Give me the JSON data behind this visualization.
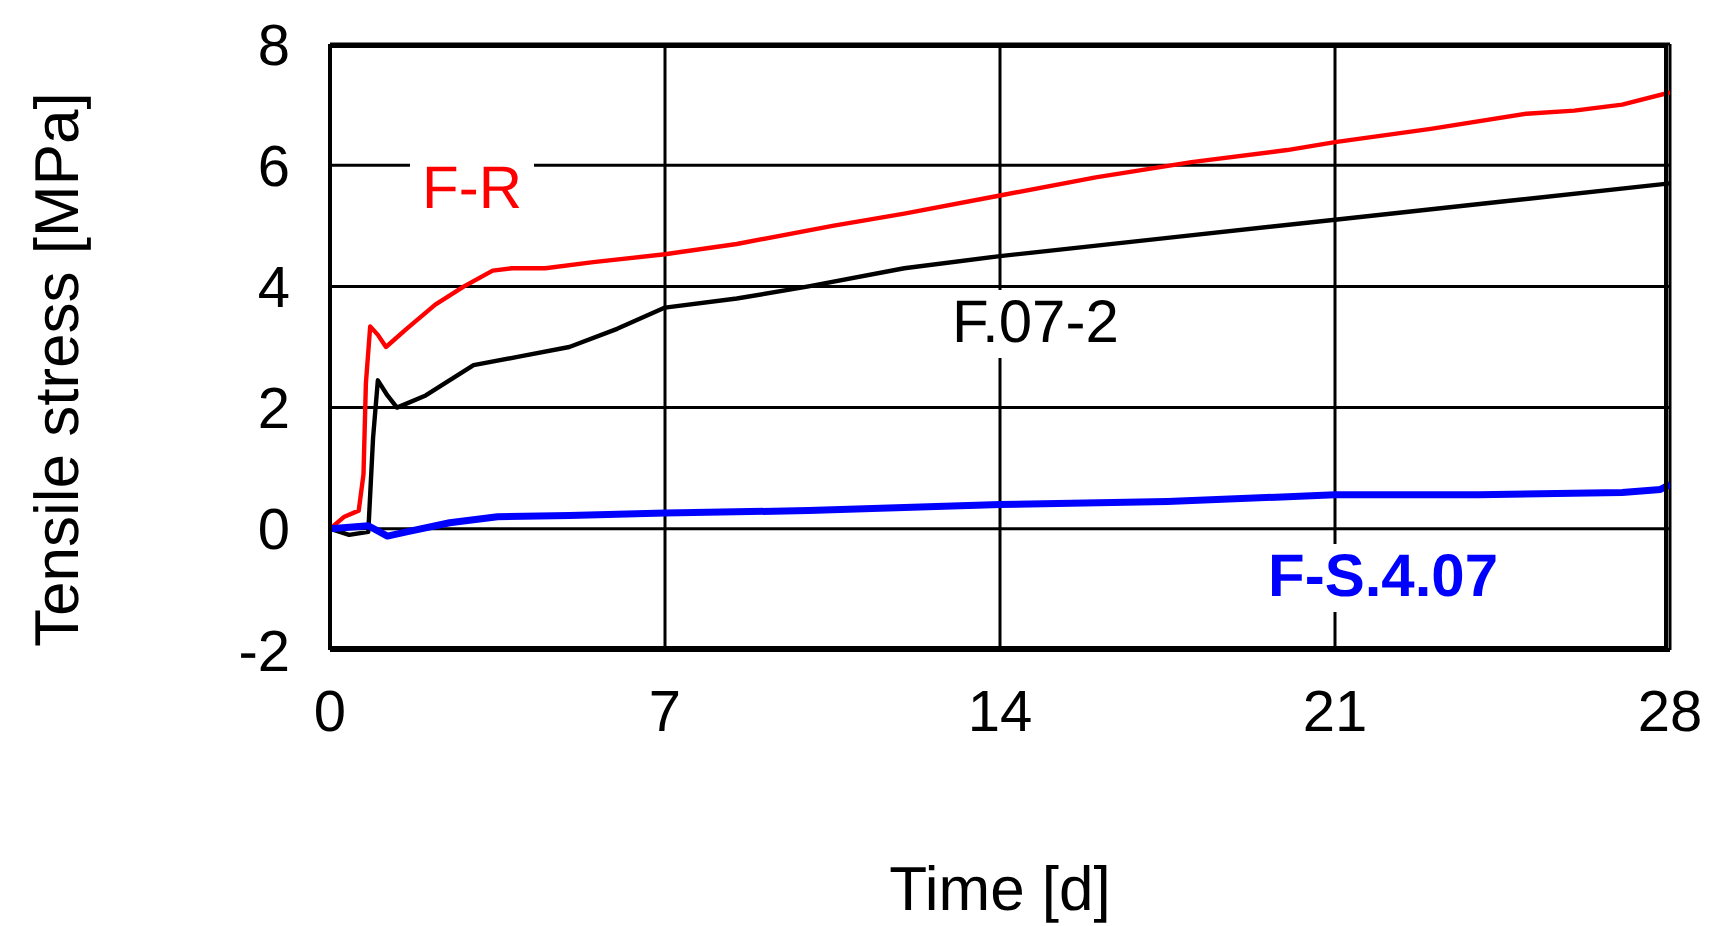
{
  "chart_data": {
    "type": "line",
    "xlabel": "Time [d]",
    "ylabel": "Tensile stress [MPa]",
    "xlim": [
      0,
      28
    ],
    "xticks": [
      0,
      7,
      14,
      21,
      28
    ],
    "ylim": [
      -2,
      8
    ],
    "yticks": [
      -2,
      0,
      2,
      4,
      6,
      8
    ],
    "grid": true,
    "legend": false,
    "marker": "none",
    "line_style": "solid",
    "series": [
      {
        "name": "F-R",
        "color": "#ff0000",
        "x": [
          0,
          0.3,
          0.6,
          0.7,
          0.75,
          0.84,
          1.0,
          1.17,
          1.6,
          2.2,
          2.8,
          3.4,
          3.8,
          4.5,
          5.5,
          7,
          8.5,
          10.5,
          12,
          14,
          16,
          18,
          20,
          21,
          23,
          25,
          26,
          27,
          28
        ],
        "values": [
          0,
          0.2,
          0.3,
          0.9,
          2.4,
          3.34,
          3.2,
          3.0,
          3.3,
          3.7,
          4.0,
          4.26,
          4.3,
          4.3,
          4.4,
          4.53,
          4.7,
          5.0,
          5.2,
          5.5,
          5.8,
          6.05,
          6.25,
          6.38,
          6.6,
          6.85,
          6.9,
          7.0,
          7.2
        ]
      },
      {
        "name": "F.07-2",
        "color": "#000000",
        "x": [
          0,
          0.4,
          0.8,
          0.9,
          1.0,
          1.2,
          1.4,
          2,
          3,
          4,
          5,
          6,
          7,
          8.5,
          10,
          12,
          14,
          17.5,
          21,
          24.5,
          28
        ],
        "values": [
          0,
          -0.1,
          -0.05,
          1.5,
          2.45,
          2.2,
          2.0,
          2.2,
          2.7,
          2.85,
          3.0,
          3.3,
          3.65,
          3.8,
          4.0,
          4.3,
          4.5,
          4.8,
          5.1,
          5.4,
          5.7
        ]
      },
      {
        "name": "F-S.4.07",
        "color": "#0000ff",
        "x": [
          0,
          0.8,
          1.2,
          1.6,
          2.5,
          3.5,
          5,
          7,
          10,
          14,
          17.5,
          21,
          24,
          27,
          27.8,
          28
        ],
        "values": [
          0,
          0.05,
          -0.12,
          -0.05,
          0.1,
          0.2,
          0.22,
          0.26,
          0.3,
          0.4,
          0.45,
          0.56,
          0.56,
          0.6,
          0.65,
          0.73
        ]
      }
    ]
  }
}
